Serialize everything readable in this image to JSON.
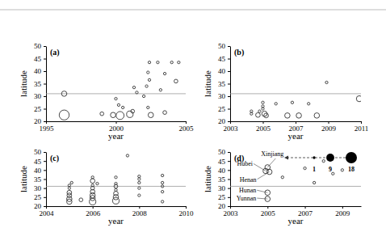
{
  "chart_data": [
    {
      "type": "scatter",
      "panel_label": "(a)",
      "x_label": "year",
      "y_label": "latitude",
      "xlim": [
        1995,
        2005
      ],
      "xticks": [
        1995,
        2000,
        2005
      ],
      "ylim": [
        20,
        50
      ],
      "yticks": [
        20,
        25,
        30,
        35,
        40,
        45,
        50
      ],
      "hline": 31,
      "x": [
        1996.3,
        1996.3,
        1999.0,
        1999.8,
        2000.0,
        2000.2,
        2000.3,
        2000.5,
        2001.0,
        2001.2,
        2001.3,
        2001.5,
        2002.0,
        2002.2,
        2002.3,
        2002.3,
        2002.4,
        2002.4,
        2002.5,
        2003.0,
        2003.2,
        2003.5,
        2003.5,
        2004.0,
        2004.3,
        2004.5
      ],
      "values": [
        22.5,
        31,
        23,
        22.5,
        29,
        26.5,
        22.3,
        25.5,
        22.8,
        24,
        33.5,
        31.5,
        30,
        34,
        39.5,
        25.5,
        43.5,
        36.5,
        22.5,
        43.5,
        32.5,
        39,
        23.5,
        43.5,
        36,
        43.5
      ],
      "sizes": [
        14,
        4,
        2,
        4,
        1,
        1,
        9,
        1,
        6,
        2,
        1,
        1,
        1,
        1,
        1,
        1,
        1,
        1,
        4,
        1,
        1,
        1,
        2,
        1,
        2,
        1
      ]
    },
    {
      "type": "scatter",
      "panel_label": "(b)",
      "x_label": "year",
      "y_label": "latitude",
      "xlim": [
        2003,
        2011
      ],
      "xticks": [
        2003,
        2005,
        2007,
        2009,
        2011
      ],
      "ylim": [
        20,
        50
      ],
      "yticks": [
        20,
        25,
        30,
        35,
        40,
        45,
        50
      ],
      "hline": 31,
      "x": [
        2004.3,
        2004.3,
        2004.7,
        2004.8,
        2005.0,
        2005.0,
        2005.0,
        2005.1,
        2005.2,
        2005.8,
        2006.5,
        2006.8,
        2007.2,
        2007.8,
        2008.3,
        2008.9,
        2010.9
      ],
      "values": [
        23,
        24,
        22.5,
        24,
        25,
        26,
        27.5,
        23,
        22.3,
        27,
        22.3,
        27.5,
        22.3,
        27,
        22.3,
        35.5,
        29
      ],
      "sizes": [
        1,
        1,
        3,
        1,
        1,
        1,
        1,
        4,
        3,
        1,
        4,
        1,
        4,
        1,
        4,
        1,
        5
      ]
    },
    {
      "type": "scatter",
      "panel_label": "(c)",
      "x_label": "year",
      "y_label": "latitude",
      "xlim": [
        2004,
        2010
      ],
      "xticks": [
        2004,
        2006,
        2008,
        2010
      ],
      "ylim": [
        20,
        50
      ],
      "yticks": [
        20,
        25,
        30,
        35,
        40,
        45,
        50
      ],
      "hline": 31,
      "x": [
        2005.0,
        2005.0,
        2005.0,
        2005.0,
        2005.0,
        2005.0,
        2005.1,
        2005.5,
        2006.0,
        2006.0,
        2006.0,
        2006.0,
        2006.0,
        2006.0,
        2006.0,
        2006.0,
        2006.2,
        2007.0,
        2007.0,
        2007.0,
        2007.0,
        2007.0,
        2007.0,
        2007.0,
        2007.5,
        2008.0,
        2008.0,
        2008.0,
        2008.0,
        2008.0,
        2009.0,
        2009.0,
        2009.0,
        2009.0,
        2009.0
      ],
      "values": [
        22.5,
        24,
        26,
        27.5,
        30,
        31.5,
        33,
        23.5,
        22.5,
        24.5,
        26,
        28,
        30,
        31.5,
        34,
        36,
        32.5,
        23,
        25,
        27,
        29,
        31,
        32.5,
        36,
        48,
        26,
        30,
        33,
        35,
        36.5,
        22.5,
        28,
        31,
        33,
        37
      ],
      "sizes": [
        4,
        4,
        3,
        3,
        1,
        1,
        1,
        2,
        6,
        4,
        4,
        3,
        2,
        1,
        3,
        1,
        1,
        6,
        4,
        3,
        1,
        2,
        1,
        1,
        1,
        1,
        1,
        1,
        1,
        1,
        1,
        1,
        1,
        1,
        1
      ]
    },
    {
      "type": "scatter",
      "panel_label": "(d)",
      "x_label": "year",
      "y_label": "latitude",
      "xlim": [
        2003,
        2010
      ],
      "xticks": [
        2003,
        2005,
        2007,
        2009
      ],
      "ylim": [
        20,
        50
      ],
      "yticks": [
        20,
        25,
        30,
        35,
        40,
        45,
        50
      ],
      "hline": 31,
      "x": [
        2005.0,
        2004.9,
        2005.1,
        2005.0,
        2005.0,
        2005.8,
        2007.0,
        2007.5,
        2008.0,
        2008.5,
        2009.0
      ],
      "values": [
        41.5,
        39.5,
        39,
        27.5,
        24,
        36,
        41,
        33,
        45,
        38,
        40
      ],
      "sizes": [
        4,
        4,
        4,
        4,
        4,
        1,
        1,
        1,
        1,
        1,
        1
      ],
      "annotations": [
        {
          "text": "Xinjiang",
          "point": 0
        },
        {
          "text": "Hubei",
          "point": 1
        },
        {
          "text": "Henan",
          "point": 2
        },
        {
          "text": "Hunan",
          "point": 3
        },
        {
          "text": "Yunnan",
          "point": 4
        }
      ],
      "size_legend": [
        1,
        9,
        18
      ]
    }
  ]
}
